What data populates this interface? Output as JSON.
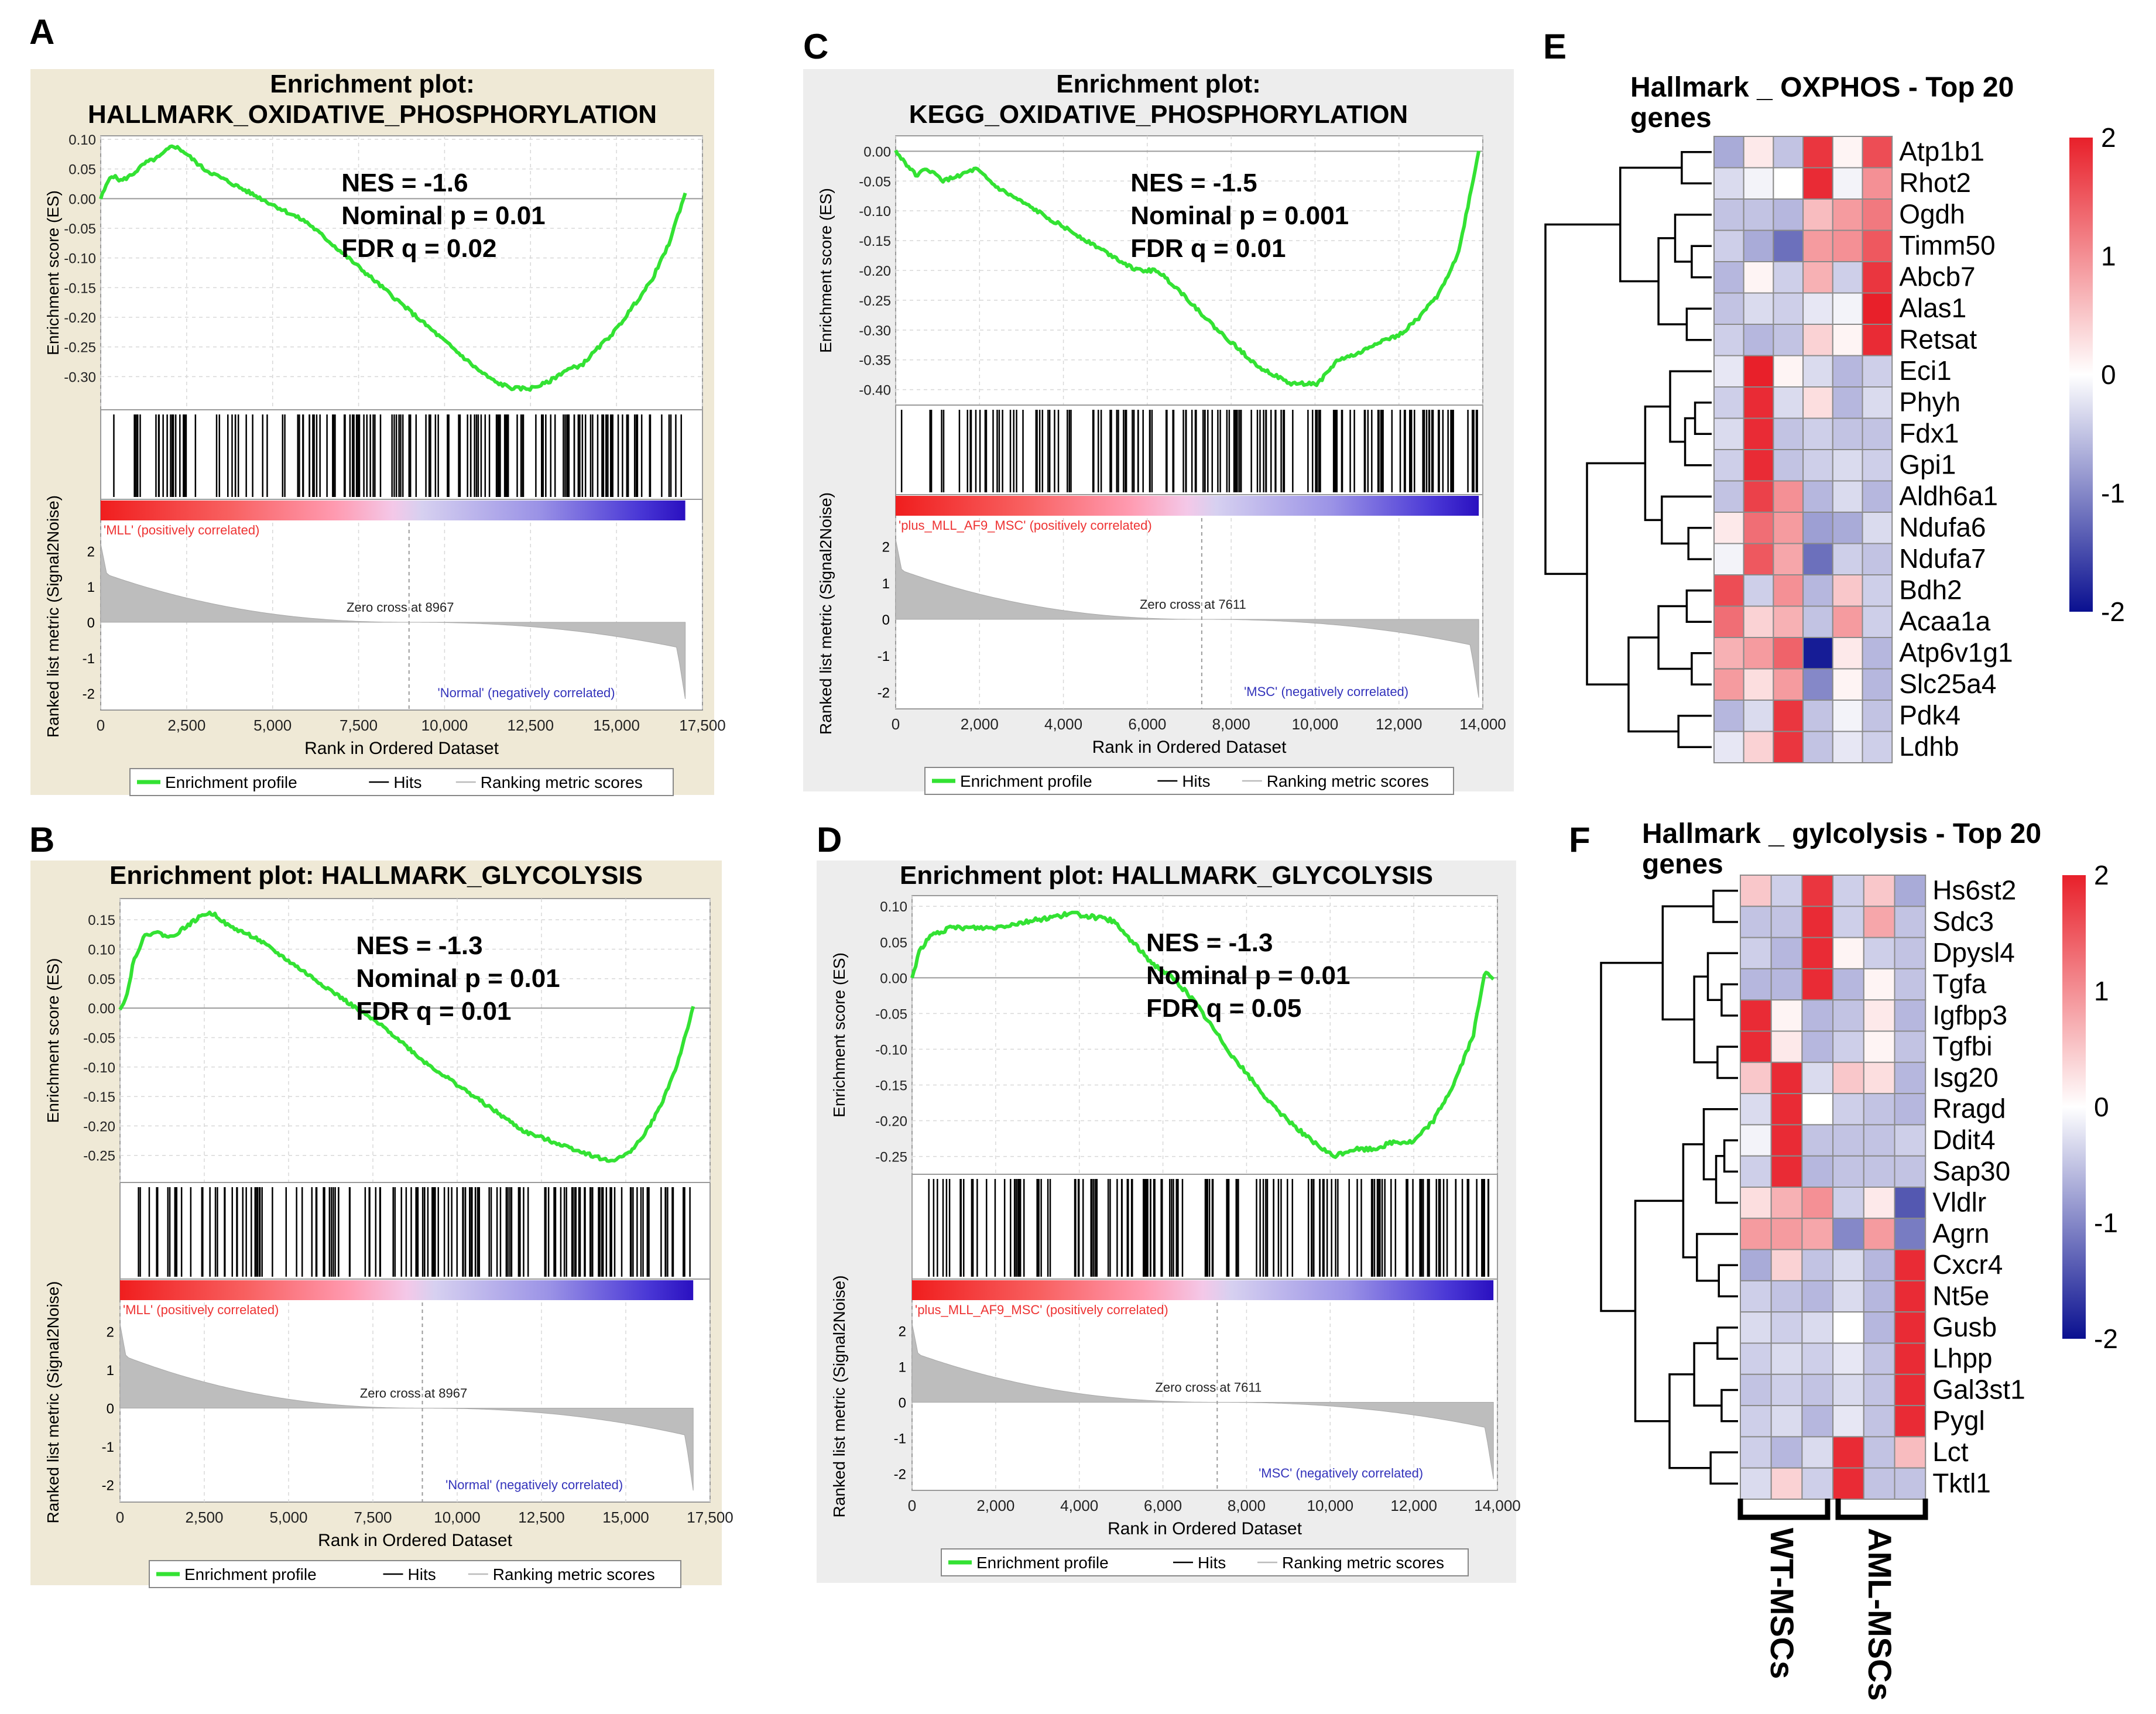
{
  "figure": {
    "panel_labels": [
      "A",
      "B",
      "C",
      "D",
      "E",
      "F"
    ],
    "group_labels": {
      "wt": "WT-MSCs",
      "aml": "AML-MSCs"
    }
  },
  "chart_data": [
    {
      "type": "line",
      "panel": "A",
      "title_line1": "Enrichment plot:",
      "title_line2": "HALLMARK_OXIDATIVE_PHOSPHORYLATION",
      "ylabel": "Enrichment score (ES)",
      "xlabel": "Rank in Ordered Dataset",
      "metric_ylabel": "Ranked list metric (Signal2Noise)",
      "xlim": [
        0,
        17500
      ],
      "xticks": [
        "0",
        "2,500",
        "5,000",
        "7,500",
        "10,000",
        "12,500",
        "15,000",
        "17,500"
      ],
      "ylim": [
        -0.35,
        0.1
      ],
      "yticks": [
        "0.10",
        "0.05",
        "0.00",
        "-0.05",
        "-0.10",
        "-0.15",
        "-0.20",
        "-0.25",
        "-0.30"
      ],
      "metric_ticks": [
        "2",
        "1",
        "0",
        "-1",
        "-2"
      ],
      "n_genes": 17000,
      "zero_cross": 8967,
      "zero_cross_label": "Zero cross at 8967",
      "pos_label": "'MLL' (positively correlated)",
      "neg_label": "'Normal' (negatively correlated)",
      "stats": [
        "NES = -1.6",
        "Nominal p = 0.01",
        "FDR q = 0.02"
      ],
      "legend": [
        "Enrichment profile",
        "Hits",
        "Ranking metric scores"
      ],
      "es_x": [
        0,
        300,
        600,
        900,
        1300,
        1700,
        2100,
        2400,
        3000,
        4000,
        5000,
        6000,
        7000,
        8000,
        9000,
        10000,
        11000,
        11500,
        12000,
        12500,
        13000,
        13500,
        14000,
        14500,
        15000,
        15500,
        16000,
        16500,
        17000
      ],
      "es_y": [
        0.0,
        0.04,
        0.03,
        0.04,
        0.06,
        0.07,
        0.09,
        0.08,
        0.05,
        0.02,
        -0.01,
        -0.04,
        -0.09,
        -0.14,
        -0.19,
        -0.24,
        -0.29,
        -0.31,
        -0.32,
        -0.32,
        -0.31,
        -0.29,
        -0.28,
        -0.25,
        -0.22,
        -0.18,
        -0.14,
        -0.08,
        0.01
      ],
      "background": "#efe9d6"
    },
    {
      "type": "line",
      "panel": "B",
      "title_line1": "Enrichment plot: HALLMARK_GLYCOLYSIS",
      "title_line2": "",
      "ylabel": "Enrichment score (ES)",
      "xlabel": "Rank in Ordered Dataset",
      "metric_ylabel": "Ranked list metric (Signal2Noise)",
      "xlim": [
        0,
        17500
      ],
      "xticks": [
        "0",
        "2,500",
        "5,000",
        "7,500",
        "10,000",
        "12,500",
        "15,000",
        "17,500"
      ],
      "ylim": [
        -0.29,
        0.18
      ],
      "yticks": [
        "0.15",
        "0.10",
        "0.05",
        "0.00",
        "-0.05",
        "-0.10",
        "-0.15",
        "-0.20",
        "-0.25"
      ],
      "metric_ticks": [
        "2",
        "1",
        "0",
        "-1",
        "-2"
      ],
      "n_genes": 17000,
      "zero_cross": 8967,
      "zero_cross_label": "Zero cross at 8967",
      "pos_label": "'MLL' (positively correlated)",
      "neg_label": "'Normal' (negatively correlated)",
      "stats": [
        "NES = -1.3",
        "Nominal p = 0.01",
        "FDR q = 0.01"
      ],
      "legend": [
        "Enrichment profile",
        "Hits",
        "Ranking metric scores"
      ],
      "es_x": [
        0,
        200,
        400,
        700,
        1000,
        1500,
        2000,
        2500,
        2800,
        3200,
        4000,
        5000,
        6000,
        7000,
        8000,
        9000,
        10000,
        11000,
        12000,
        13000,
        14000,
        14500,
        15000,
        15500,
        16000,
        16500,
        17000
      ],
      "es_y": [
        0.0,
        0.02,
        0.08,
        0.12,
        0.13,
        0.12,
        0.14,
        0.16,
        0.16,
        0.14,
        0.12,
        0.08,
        0.04,
        0.0,
        -0.04,
        -0.09,
        -0.13,
        -0.17,
        -0.21,
        -0.23,
        -0.25,
        -0.26,
        -0.25,
        -0.22,
        -0.17,
        -0.1,
        0.0
      ],
      "background": "#efe9d6"
    },
    {
      "type": "line",
      "panel": "C",
      "title_line1": "Enrichment plot:",
      "title_line2": "KEGG_OXIDATIVE_PHOSPHORYLATION",
      "ylabel": "Enrichment score (ES)",
      "xlabel": "Rank in Ordered Dataset",
      "metric_ylabel": "Ranked list metric (Signal2Noise)",
      "xlim": [
        0,
        14600
      ],
      "xticks": [
        "0",
        "2,000",
        "4,000",
        "6,000",
        "8,000",
        "10,000",
        "12,000",
        "14,000"
      ],
      "ylim": [
        -0.42,
        0.02
      ],
      "yticks": [
        "0.00",
        "-0.05",
        "-0.10",
        "-0.15",
        "-0.20",
        "-0.25",
        "-0.30",
        "-0.35",
        "-0.40"
      ],
      "metric_ticks": [
        "2",
        "1",
        "0",
        "-1",
        "-2"
      ],
      "n_genes": 14500,
      "zero_cross": 7611,
      "zero_cross_label": "Zero cross at 7611",
      "pos_label": "'plus_MLL_AF9_MSC' (positively correlated)",
      "neg_label": "'MSC' (negatively correlated)",
      "stats": [
        "NES = -1.5",
        "Nominal p = 0.001",
        "FDR q = 0.01"
      ],
      "legend": [
        "Enrichment profile",
        "Hits",
        "Ranking metric scores"
      ],
      "es_x": [
        0,
        500,
        800,
        1200,
        1600,
        2000,
        2500,
        3000,
        4000,
        5000,
        6000,
        6500,
        7000,
        8000,
        9000,
        9800,
        10500,
        11000,
        11500,
        12000,
        12500,
        13000,
        13500,
        14000,
        14500
      ],
      "es_y": [
        0.0,
        -0.04,
        -0.03,
        -0.05,
        -0.04,
        -0.03,
        -0.06,
        -0.08,
        -0.12,
        -0.16,
        -0.2,
        -0.2,
        -0.23,
        -0.3,
        -0.36,
        -0.39,
        -0.39,
        -0.35,
        -0.34,
        -0.32,
        -0.31,
        -0.28,
        -0.24,
        -0.17,
        0.0
      ],
      "background": "#ededed"
    },
    {
      "type": "line",
      "panel": "D",
      "title_line1": "Enrichment plot: HALLMARK_GLYCOLYSIS",
      "title_line2": "",
      "ylabel": "Enrichment score (ES)",
      "xlabel": "Rank in Ordered Dataset",
      "metric_ylabel": "Ranked list metric (Signal2Noise)",
      "xlim": [
        0,
        14600
      ],
      "xticks": [
        "0",
        "2,000",
        "4,000",
        "6,000",
        "8,000",
        "10,000",
        "12,000",
        "14,000"
      ],
      "ylim": [
        -0.27,
        0.11
      ],
      "yticks": [
        "0.10",
        "0.05",
        "0.00",
        "-0.05",
        "-0.10",
        "-0.15",
        "-0.20",
        "-0.25"
      ],
      "metric_ticks": [
        "2",
        "1",
        "0",
        "-1",
        "-2"
      ],
      "n_genes": 14500,
      "zero_cross": 7611,
      "zero_cross_label": "Zero cross at 7611",
      "pos_label": "'plus_MLL_AF9_MSC' (positively correlated)",
      "neg_label": "'MSC' (negatively correlated)",
      "stats": [
        "NES = -1.3",
        "Nominal p = 0.01",
        "FDR q = 0.05"
      ],
      "legend": [
        "Enrichment profile",
        "Hits",
        "Ranking metric scores"
      ],
      "es_x": [
        0,
        200,
        500,
        1000,
        2000,
        3000,
        4000,
        5000,
        5500,
        6000,
        6500,
        7000,
        8000,
        9000,
        10000,
        10500,
        11000,
        11500,
        12000,
        12500,
        13000,
        13500,
        14000,
        14300,
        14500
      ],
      "es_y": [
        0.0,
        0.04,
        0.06,
        0.07,
        0.07,
        0.08,
        0.09,
        0.08,
        0.05,
        0.02,
        0.0,
        -0.03,
        -0.11,
        -0.18,
        -0.23,
        -0.25,
        -0.24,
        -0.24,
        -0.23,
        -0.23,
        -0.2,
        -0.15,
        -0.08,
        0.01,
        0.0
      ],
      "background": "#ededed"
    },
    {
      "type": "heatmap",
      "panel": "E",
      "title_line1": "Hallmark _ OXPHOS - Top 20",
      "title_line2": "genes",
      "genes": [
        "Atp1b1",
        "Rhot2",
        "Ogdh",
        "Timm50",
        "Abcb7",
        "Alas1",
        "Retsat",
        "Eci1",
        "Phyh",
        "Fdx1",
        "Gpi1",
        "Aldh6a1",
        "Ndufa6",
        "Ndufa7",
        "Bdh2",
        "Acaa1a",
        "Atp6v1g1",
        "Slc25a4",
        "Pdk4",
        "Ldhb"
      ],
      "values": [
        [
          -0.7,
          0.2,
          -0.5,
          1.8,
          0.1,
          1.6
        ],
        [
          -0.3,
          -0.1,
          0.0,
          1.9,
          -0.1,
          1.0
        ],
        [
          -0.5,
          -0.5,
          -0.6,
          0.6,
          0.9,
          1.2
        ],
        [
          -0.4,
          -0.7,
          -1.2,
          0.9,
          1.0,
          1.5
        ],
        [
          -0.6,
          0.1,
          -0.4,
          0.7,
          -0.4,
          1.8
        ],
        [
          -0.5,
          -0.3,
          -0.4,
          -0.2,
          -0.1,
          2.0
        ],
        [
          -0.4,
          -0.6,
          -0.5,
          0.4,
          0.1,
          1.9
        ],
        [
          -0.2,
          2.0,
          0.1,
          -0.3,
          -0.6,
          -0.4
        ],
        [
          -0.4,
          1.9,
          -0.3,
          0.3,
          -0.6,
          -0.3
        ],
        [
          -0.3,
          1.9,
          -0.5,
          -0.4,
          -0.5,
          -0.5
        ],
        [
          -0.4,
          1.9,
          -0.5,
          -0.4,
          -0.3,
          -0.4
        ],
        [
          -0.5,
          1.7,
          1.0,
          -0.6,
          -0.3,
          -0.6
        ],
        [
          0.2,
          1.3,
          0.9,
          -0.8,
          -0.7,
          -0.3
        ],
        [
          -0.1,
          1.5,
          0.8,
          -1.2,
          -0.4,
          -0.5
        ],
        [
          1.6,
          -0.4,
          1.0,
          -0.6,
          0.5,
          -0.4
        ],
        [
          1.3,
          0.4,
          0.7,
          -0.5,
          0.9,
          -0.4
        ],
        [
          0.7,
          0.9,
          1.4,
          -1.9,
          0.2,
          -0.6
        ],
        [
          0.9,
          0.3,
          0.9,
          -1.0,
          0.1,
          -0.6
        ],
        [
          -0.6,
          -0.3,
          1.8,
          -0.5,
          -0.1,
          -0.5
        ],
        [
          -0.2,
          0.4,
          1.8,
          -0.5,
          -0.2,
          -0.4
        ]
      ],
      "scale_ticks": [
        "2",
        "1",
        "0",
        "-1",
        "-2"
      ],
      "vmin": -2,
      "vmax": 2
    },
    {
      "type": "heatmap",
      "panel": "F",
      "title_line1": "Hallmark _ gylcolysis - Top 20",
      "title_line2": "genes",
      "genes": [
        "Hs6st2",
        "Sdc3",
        "Dpysl4",
        "Tgfa",
        "Igfbp3",
        "Tgfbi",
        "Isg20",
        "Rragd",
        "Ddit4",
        "Sap30",
        "Vldlr",
        "Agrn",
        "Cxcr4",
        "Nt5e",
        "Gusb",
        "Lhpp",
        "Gal3st1",
        "Pygl",
        "Lct",
        "Tktl1"
      ],
      "values": [
        [
          0.5,
          -0.4,
          1.8,
          -0.4,
          0.5,
          -0.7
        ],
        [
          -0.5,
          -0.5,
          1.9,
          -0.4,
          0.8,
          -0.5
        ],
        [
          -0.4,
          -0.6,
          1.9,
          0.1,
          -0.4,
          -0.5
        ],
        [
          -0.6,
          -0.6,
          1.9,
          -0.6,
          0.1,
          -0.5
        ],
        [
          1.9,
          0.1,
          -0.6,
          -0.5,
          0.2,
          -0.6
        ],
        [
          1.9,
          0.2,
          -0.6,
          -0.4,
          0.1,
          -0.5
        ],
        [
          0.5,
          1.9,
          -0.3,
          0.5,
          0.3,
          -0.6
        ],
        [
          -0.3,
          1.9,
          0.0,
          -0.4,
          -0.5,
          -0.6
        ],
        [
          -0.1,
          1.9,
          -0.5,
          -0.5,
          -0.5,
          -0.4
        ],
        [
          -0.4,
          1.9,
          -0.6,
          -0.5,
          -0.5,
          -0.5
        ],
        [
          0.3,
          0.7,
          1.0,
          -0.4,
          0.2,
          -1.4
        ],
        [
          0.9,
          0.9,
          0.8,
          -1.0,
          0.9,
          -1.1
        ],
        [
          -0.7,
          0.4,
          -0.5,
          -0.3,
          -0.6,
          1.9
        ],
        [
          -0.4,
          -0.5,
          -0.6,
          -0.3,
          -0.6,
          1.9
        ],
        [
          -0.3,
          -0.4,
          -0.3,
          0.0,
          -0.6,
          1.9
        ],
        [
          -0.4,
          -0.3,
          -0.4,
          -0.2,
          -0.5,
          1.9
        ],
        [
          -0.5,
          -0.4,
          -0.5,
          -0.3,
          -0.5,
          1.9
        ],
        [
          -0.4,
          -0.3,
          -0.6,
          -0.2,
          -0.5,
          1.9
        ],
        [
          -0.4,
          -0.6,
          -0.3,
          1.9,
          -0.5,
          0.6
        ],
        [
          -0.3,
          0.4,
          -0.4,
          1.9,
          -0.5,
          -0.5
        ]
      ],
      "scale_ticks": [
        "2",
        "1",
        "0",
        "-1",
        "-2"
      ],
      "vmin": -2,
      "vmax": 2
    }
  ]
}
